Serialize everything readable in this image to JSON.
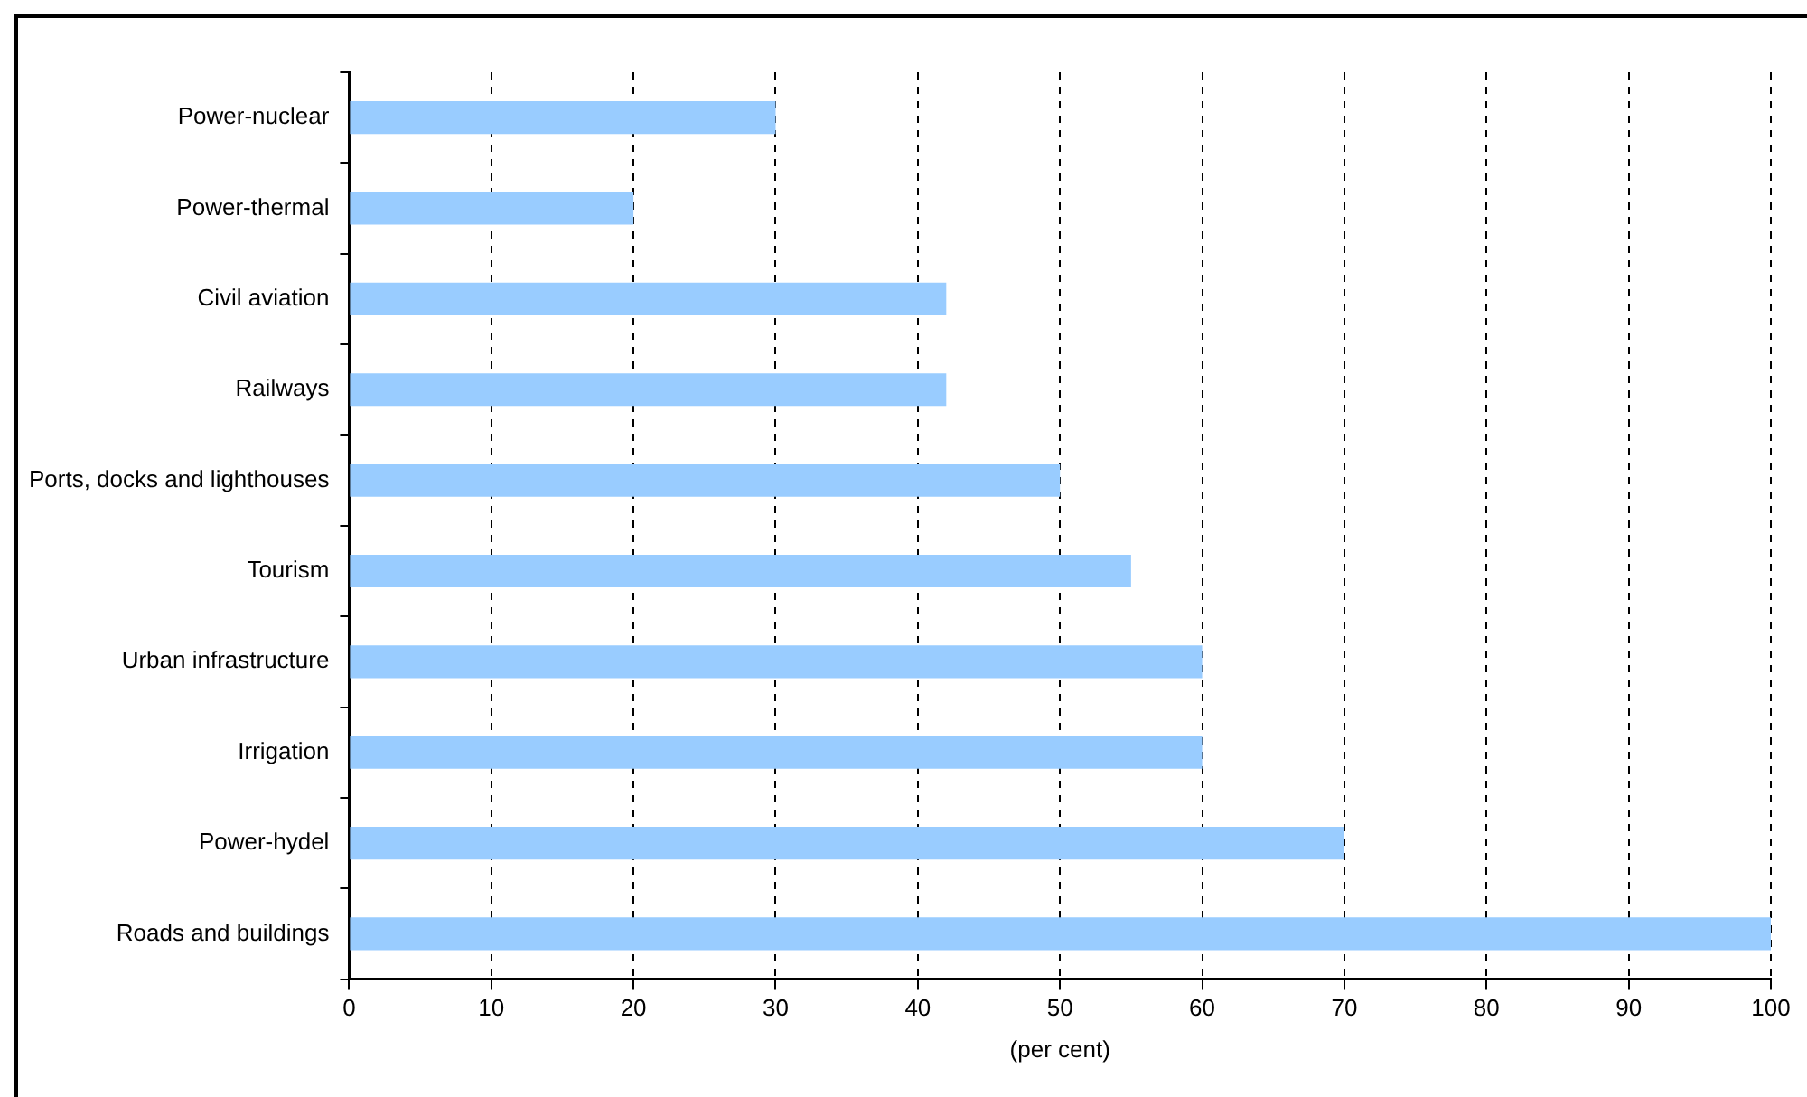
{
  "chart_data": {
    "type": "bar",
    "orientation": "horizontal",
    "xlabel": "(per cent)",
    "categories": [
      "Power-nuclear",
      "Power-thermal",
      "Civil aviation",
      "Railways",
      "Ports, docks and lighthouses",
      "Tourism",
      "Urban infrastructure",
      "Irrigation",
      "Power-hydel",
      "Roads and buildings"
    ],
    "values": [
      30,
      20,
      42,
      42,
      50,
      55,
      60,
      60,
      70,
      100
    ],
    "color": "#99ccff",
    "xlim": [
      0,
      100
    ],
    "xticks": [
      0,
      10,
      20,
      30,
      40,
      50,
      60,
      70,
      80,
      90,
      100
    ],
    "grid": "x",
    "line_style": "dashed",
    "legend": false
  }
}
